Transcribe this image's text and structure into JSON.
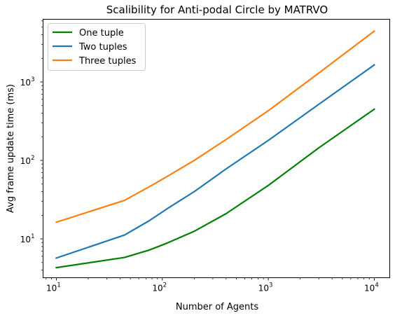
{
  "chart_data": {
    "type": "line",
    "title": "Scalibility for Anti-podal Circle by MATRVO",
    "xlabel": "Number of Agents",
    "ylabel": "Avg frame update time (ms)",
    "xscale": "log",
    "yscale": "log",
    "xlim": [
      7.5,
      14000
    ],
    "ylim": [
      3.2,
      6300
    ],
    "grid": false,
    "legend_position": "top-left",
    "x_ticks": [
      {
        "value": 10,
        "base": "10",
        "exp": "1"
      },
      {
        "value": 100,
        "base": "10",
        "exp": "2"
      },
      {
        "value": 1000,
        "base": "10",
        "exp": "3"
      },
      {
        "value": 10000,
        "base": "10",
        "exp": "4"
      }
    ],
    "y_ticks": [
      {
        "value": 10,
        "base": "10",
        "exp": "1"
      },
      {
        "value": 100,
        "base": "10",
        "exp": "2"
      },
      {
        "value": 1000,
        "base": "10",
        "exp": "3"
      }
    ],
    "series": [
      {
        "name": "One tuple",
        "color": "#008000",
        "x": [
          10,
          44,
          75,
          110,
          200,
          400,
          1000,
          3000,
          10000
        ],
        "y": [
          4.3,
          5.8,
          7.2,
          8.8,
          12.5,
          21,
          48,
          145,
          450
        ]
      },
      {
        "name": "Two tuples",
        "color": "#1f77b4",
        "x": [
          10,
          44,
          75,
          110,
          200,
          400,
          1000,
          3000,
          10000
        ],
        "y": [
          5.7,
          11.2,
          17,
          24,
          40,
          78,
          180,
          520,
          1650
        ]
      },
      {
        "name": "Three tuples",
        "color": "#ff7f0e",
        "x": [
          10,
          44,
          75,
          110,
          200,
          400,
          1000,
          3000,
          10000
        ],
        "y": [
          16.3,
          31,
          46,
          62,
          100,
          185,
          430,
          1300,
          4450
        ]
      }
    ]
  }
}
